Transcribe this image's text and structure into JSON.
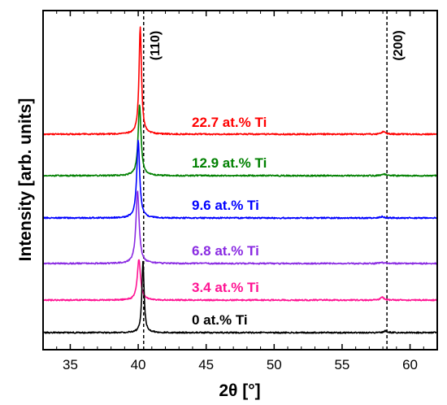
{
  "chart_data": {
    "type": "line",
    "xlabel": "2θ [°]",
    "ylabel": "Intensity [arb. units]",
    "xlim": [
      33,
      62
    ],
    "xticks": [
      "35",
      "40",
      "45",
      "50",
      "55",
      "60"
    ],
    "grid": false,
    "reference_lines": [
      {
        "x": 40.4,
        "label": "(110)"
      },
      {
        "x": 58.3,
        "label": "(200)"
      }
    ],
    "series": [
      {
        "name": "22.7 at.% Ti",
        "color": "#ff0000",
        "peak_x": 40.15,
        "peak_height": 9.4,
        "peak_width": 0.11,
        "second_peak_x": 58.05,
        "second_peak_height": 0.25
      },
      {
        "name": "12.9 at.% Ti",
        "color": "#008000",
        "peak_x": 40.1,
        "peak_height": 6.2,
        "peak_width": 0.13,
        "second_peak_x": 58.05,
        "second_peak_height": 0.15
      },
      {
        "name": "9.6 at.% Ti",
        "color": "#0000ff",
        "peak_x": 40.0,
        "peak_height": 6.8,
        "peak_width": 0.13,
        "second_peak_x": 57.95,
        "second_peak_height": 0.12
      },
      {
        "name": "6.8 at.% Ti",
        "color": "#8a2be2",
        "peak_x": 39.95,
        "peak_height": 6.4,
        "peak_width": 0.14,
        "second_peak_x": 57.9,
        "second_peak_height": 0.12
      },
      {
        "name": "3.4 at.% Ti",
        "color": "#ff1493",
        "peak_x": 40.05,
        "peak_height": 3.6,
        "peak_width": 0.14,
        "second_peak_x": 57.95,
        "second_peak_height": 0.25
      },
      {
        "name": "0 at.% Ti",
        "color": "#000000",
        "peak_x": 40.35,
        "peak_height": 6.2,
        "peak_width": 0.1,
        "second_peak_x": 58.2,
        "second_peak_height": 0.15
      }
    ]
  }
}
